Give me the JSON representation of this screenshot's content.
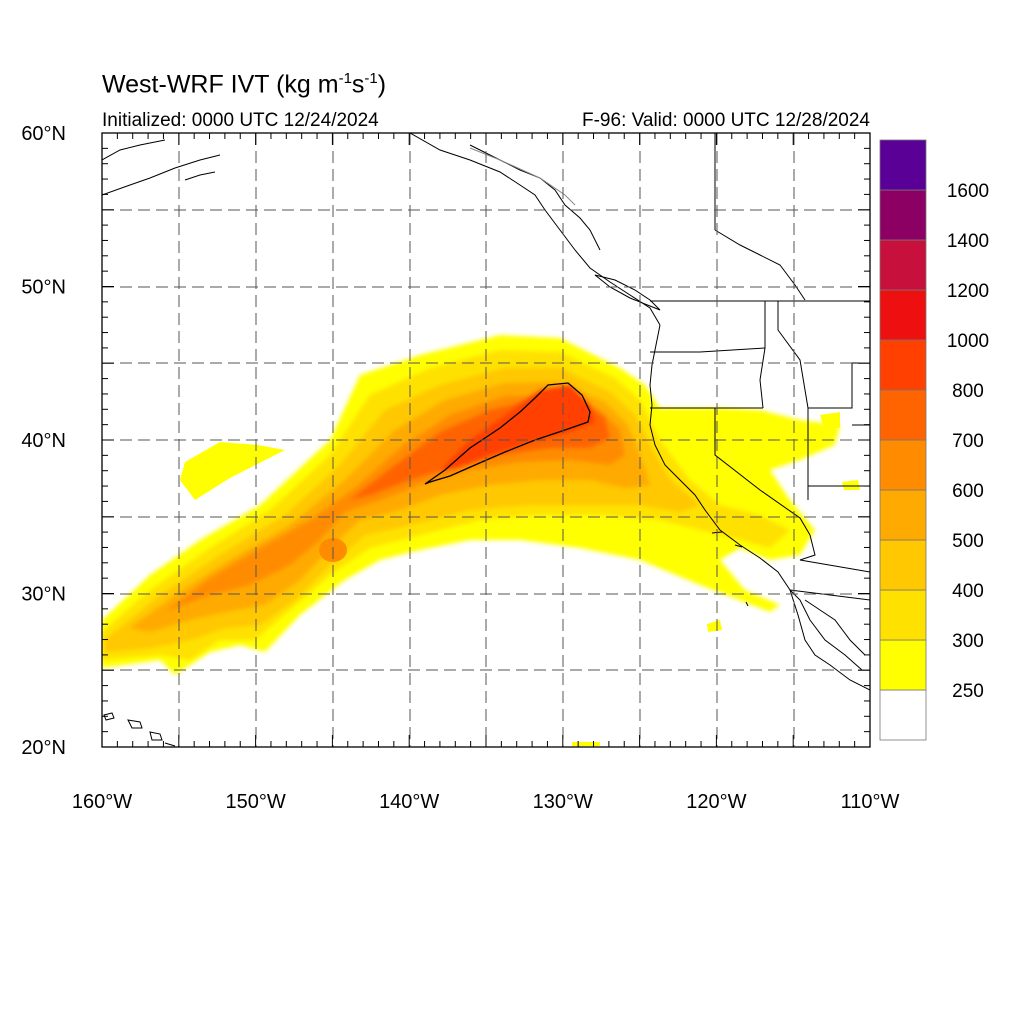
{
  "title": {
    "main": "West-WRF IVT (kg m",
    "sup1": "-1",
    "mid": "s",
    "sup2": "-1",
    "close": ")"
  },
  "initialized": "Initialized: 0000 UTC 12/24/2024",
  "valid": "F-96: Valid: 0000 UTC 12/28/2024",
  "map": {
    "lon_range": [
      -160,
      -110
    ],
    "lat_range": [
      20,
      60
    ],
    "lon_ticks": [
      {
        "value": -160,
        "label": "160°W"
      },
      {
        "value": -150,
        "label": "150°W"
      },
      {
        "value": -140,
        "label": "140°W"
      },
      {
        "value": -130,
        "label": "130°W"
      },
      {
        "value": -120,
        "label": "120°W"
      },
      {
        "value": -110,
        "label": "110°W"
      }
    ],
    "lat_ticks": [
      {
        "value": 60,
        "label": "60°N"
      },
      {
        "value": 50,
        "label": "50°N"
      },
      {
        "value": 40,
        "label": "40°N"
      },
      {
        "value": 30,
        "label": "30°N"
      },
      {
        "value": 20,
        "label": "20°N"
      }
    ],
    "gridlines": "dashed, every 5 degrees"
  },
  "colorbar": {
    "levels": [
      {
        "label": "",
        "color": "#ffffff"
      },
      {
        "label": "250",
        "color": "#ffff00"
      },
      {
        "label": "300",
        "color": "#ffe100"
      },
      {
        "label": "400",
        "color": "#ffc800"
      },
      {
        "label": "500",
        "color": "#ffaa00"
      },
      {
        "label": "600",
        "color": "#ff8c00"
      },
      {
        "label": "700",
        "color": "#ff6400"
      },
      {
        "label": "800",
        "color": "#ff4000"
      },
      {
        "label": "1000",
        "color": "#ee1010"
      },
      {
        "label": "1200",
        "color": "#c8103c"
      },
      {
        "label": "1400",
        "color": "#8c0064"
      },
      {
        "label": "1600",
        "color": "#5a0096"
      }
    ]
  }
}
